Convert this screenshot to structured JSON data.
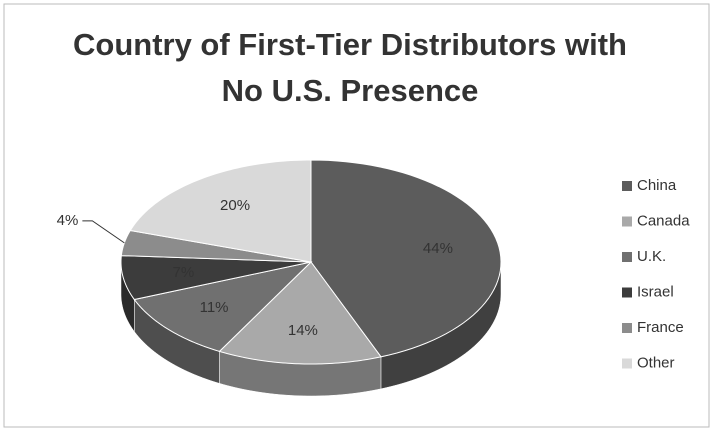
{
  "chart_data": {
    "type": "pie",
    "title": "Country of First-Tier Distributors with No U.S. Presence",
    "categories": [
      "China",
      "Canada",
      "U.K.",
      "Israel",
      "France",
      "Other"
    ],
    "values": [
      44,
      14,
      11,
      7,
      4,
      20
    ],
    "value_labels": [
      "44%",
      "14%",
      "11%",
      "7%",
      "4%",
      "20%"
    ],
    "colors": [
      "#5c5c5c",
      "#a9a9a9",
      "#707070",
      "#3c3c3c",
      "#8c8c8c",
      "#d9d9d9"
    ],
    "legend": "right"
  }
}
